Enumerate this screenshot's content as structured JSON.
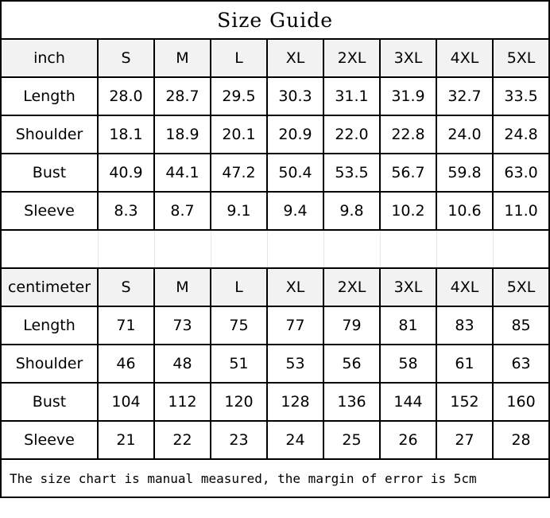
{
  "title": "Size Guide",
  "sizes": [
    "S",
    "M",
    "L",
    "XL",
    "2XL",
    "3XL",
    "4XL",
    "5XL"
  ],
  "inch": {
    "unit_label": "inch",
    "rows": [
      {
        "label": "Length",
        "values": [
          "28.0",
          "28.7",
          "29.5",
          "30.3",
          "31.1",
          "31.9",
          "32.7",
          "33.5"
        ]
      },
      {
        "label": "Shoulder",
        "values": [
          "18.1",
          "18.9",
          "20.1",
          "20.9",
          "22.0",
          "22.8",
          "24.0",
          "24.8"
        ]
      },
      {
        "label": "Bust",
        "values": [
          "40.9",
          "44.1",
          "47.2",
          "50.4",
          "53.5",
          "56.7",
          "59.8",
          "63.0"
        ]
      },
      {
        "label": "Sleeve",
        "values": [
          "8.3",
          "8.7",
          "9.1",
          "9.4",
          "9.8",
          "10.2",
          "10.6",
          "11.0"
        ]
      }
    ]
  },
  "centimeter": {
    "unit_label": "centimeter",
    "rows": [
      {
        "label": "Length",
        "values": [
          "71",
          "73",
          "75",
          "77",
          "79",
          "81",
          "83",
          "85"
        ]
      },
      {
        "label": "Shoulder",
        "values": [
          "46",
          "48",
          "51",
          "53",
          "56",
          "58",
          "61",
          "63"
        ]
      },
      {
        "label": "Bust",
        "values": [
          "104",
          "112",
          "120",
          "128",
          "136",
          "144",
          "152",
          "160"
        ]
      },
      {
        "label": "Sleeve",
        "values": [
          "21",
          "22",
          "23",
          "24",
          "25",
          "26",
          "27",
          "28"
        ]
      }
    ]
  },
  "footer": "The size chart is manual measured, the margin of error is 5cm",
  "colors": {
    "header_bg": "#f2f2f2",
    "border": "#000000"
  }
}
